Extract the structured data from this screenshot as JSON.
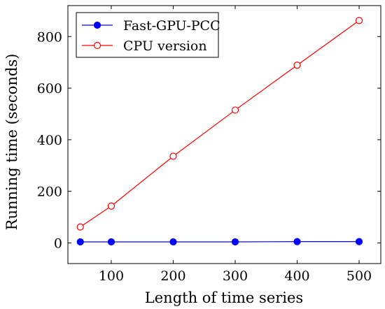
{
  "chart_data": {
    "type": "line",
    "xlabel": "Length of time series",
    "ylabel": "Running time (seconds)",
    "x": [
      50,
      100,
      200,
      300,
      400,
      500
    ],
    "xlim": [
      30,
      535
    ],
    "ylim": [
      -80,
      920
    ],
    "xticks": [
      100,
      200,
      300,
      400,
      500
    ],
    "yticks": [
      0,
      200,
      400,
      600,
      800
    ],
    "grid": false,
    "legend_position": "top-left",
    "series": [
      {
        "name": "Fast-GPU-PCC",
        "values": [
          4,
          4,
          4,
          4,
          5,
          5
        ],
        "color": "#0000ff",
        "marker": "filled-circle"
      },
      {
        "name": "CPU version",
        "values": [
          62,
          143,
          336,
          515,
          689,
          862
        ],
        "color": "#ff0000",
        "marker": "open-circle"
      }
    ]
  }
}
